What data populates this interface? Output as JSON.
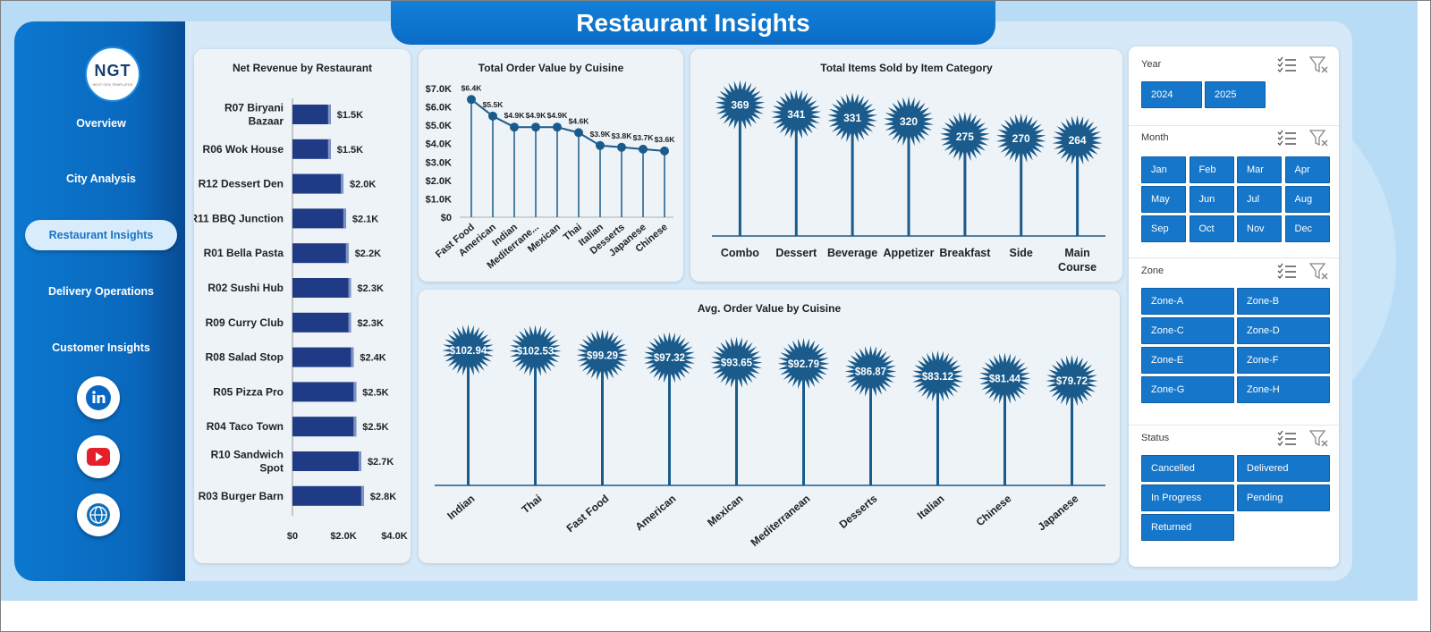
{
  "app_title": "Restaurant Insights",
  "logo": {
    "text": "NGT",
    "subtext": "NEXT GEN TEMPLATES"
  },
  "nav": [
    {
      "label": "Overview",
      "active": false
    },
    {
      "label": "City Analysis",
      "active": false
    },
    {
      "label": "Restaurant Insights",
      "active": true
    },
    {
      "label": "Delivery Operations",
      "active": false
    },
    {
      "label": "Customer Insights",
      "active": false
    }
  ],
  "social_icons": [
    "linkedin-icon",
    "youtube-icon",
    "globe-icon"
  ],
  "colors": {
    "accent": "#1676c9",
    "bar": "#1f3b86",
    "lollipop": "#1a5b8c",
    "sidebar": "#0a6cc5"
  },
  "charts": {
    "net_revenue": {
      "title": "Net Revenue by Restaurant",
      "chart_data": {
        "type": "bar",
        "orientation": "horizontal",
        "categories": [
          "R07 Biryani Bazaar",
          "R06 Wok House",
          "R12 Dessert Den",
          "R11 BBQ Junction",
          "R01 Bella Pasta",
          "R02 Sushi Hub",
          "R09 Curry Club",
          "R08 Salad Stop",
          "R05 Pizza Pro",
          "R04 Taco Town",
          "R10 Sandwich Spot",
          "R03 Burger Barn"
        ],
        "category_lines": [
          [
            "R07 Biryani",
            "Bazaar"
          ],
          [
            "R06 Wok House"
          ],
          [
            "R12 Dessert Den"
          ],
          [
            "R11 BBQ Junction"
          ],
          [
            "R01 Bella Pasta"
          ],
          [
            "R02 Sushi Hub"
          ],
          [
            "R09 Curry Club"
          ],
          [
            "R08 Salad Stop"
          ],
          [
            "R05 Pizza Pro"
          ],
          [
            "R04 Taco Town"
          ],
          [
            "R10 Sandwich",
            "Spot"
          ],
          [
            "R03 Burger Barn"
          ]
        ],
        "values": [
          1500,
          1500,
          2000,
          2100,
          2200,
          2300,
          2300,
          2400,
          2500,
          2500,
          2700,
          2800
        ],
        "labels": [
          "$1.5K",
          "$1.5K",
          "$2.0K",
          "$2.1K",
          "$2.2K",
          "$2.3K",
          "$2.3K",
          "$2.4K",
          "$2.5K",
          "$2.5K",
          "$2.7K",
          "$2.8K"
        ],
        "xlim": [
          0,
          4000
        ],
        "xticks": [
          "$0",
          "$2.0K",
          "$4.0K"
        ]
      }
    },
    "total_order_value": {
      "title": "Total Order Value by Cuisine",
      "chart_data": {
        "type": "line",
        "categories": [
          "Fast Food",
          "American",
          "Indian",
          "Mediterrane...",
          "Mexican",
          "Thai",
          "Italian",
          "Desserts",
          "Japanese",
          "Chinese"
        ],
        "values": [
          6400,
          5500,
          4900,
          4900,
          4900,
          4600,
          3900,
          3800,
          3700,
          3600
        ],
        "labels": [
          "$6.4K",
          "$5.5K",
          "$4.9K",
          "$4.9K",
          "$4.9K",
          "$4.6K",
          "$3.9K",
          "$3.8K",
          "$3.7K",
          "$3.6K"
        ],
        "ylim": [
          0,
          7000
        ],
        "yticks": [
          "$0",
          "$1.0K",
          "$2.0K",
          "$3.0K",
          "$4.0K",
          "$5.0K",
          "$6.0K",
          "$7.0K"
        ]
      }
    },
    "items_sold": {
      "title": "Total Items Sold by Item Category",
      "chart_data": {
        "type": "lollipop",
        "categories": [
          "Combo",
          "Dessert",
          "Beverage",
          "Appetizer",
          "Breakfast",
          "Side",
          "Main Course"
        ],
        "category_lines": [
          [
            "Combo"
          ],
          [
            "Dessert"
          ],
          [
            "Beverage"
          ],
          [
            "Appetizer"
          ],
          [
            "Breakfast"
          ],
          [
            "Side"
          ],
          [
            "Main",
            "Course"
          ]
        ],
        "values": [
          369,
          341,
          331,
          320,
          275,
          270,
          264
        ],
        "labels": [
          "369",
          "341",
          "331",
          "320",
          "275",
          "270",
          "264"
        ]
      }
    },
    "avg_order_value": {
      "title": "Avg. Order Value by Cuisine",
      "chart_data": {
        "type": "lollipop",
        "categories": [
          "Indian",
          "Thai",
          "Fast Food",
          "American",
          "Mexican",
          "Mediterranean",
          "Desserts",
          "Italian",
          "Chinese",
          "Japanese"
        ],
        "values": [
          102.94,
          102.53,
          99.29,
          97.32,
          93.65,
          92.79,
          86.87,
          83.12,
          81.44,
          79.72
        ],
        "labels": [
          "$102.94",
          "$102.53",
          "$99.29",
          "$97.32",
          "$93.65",
          "$92.79",
          "$86.87",
          "$83.12",
          "$81.44",
          "$79.72"
        ]
      }
    }
  },
  "slicers": {
    "year": {
      "label": "Year",
      "options": [
        "2024",
        "2025"
      ]
    },
    "month": {
      "label": "Month",
      "options": [
        "Jan",
        "Feb",
        "Mar",
        "Apr",
        "May",
        "Jun",
        "Jul",
        "Aug",
        "Sep",
        "Oct",
        "Nov",
        "Dec"
      ]
    },
    "zone": {
      "label": "Zone",
      "options": [
        "Zone-A",
        "Zone-B",
        "Zone-C",
        "Zone-D",
        "Zone-E",
        "Zone-F",
        "Zone-G",
        "Zone-H"
      ]
    },
    "status": {
      "label": "Status",
      "options": [
        "Cancelled",
        "Delivered",
        "In Progress",
        "Pending",
        "Returned"
      ]
    }
  }
}
